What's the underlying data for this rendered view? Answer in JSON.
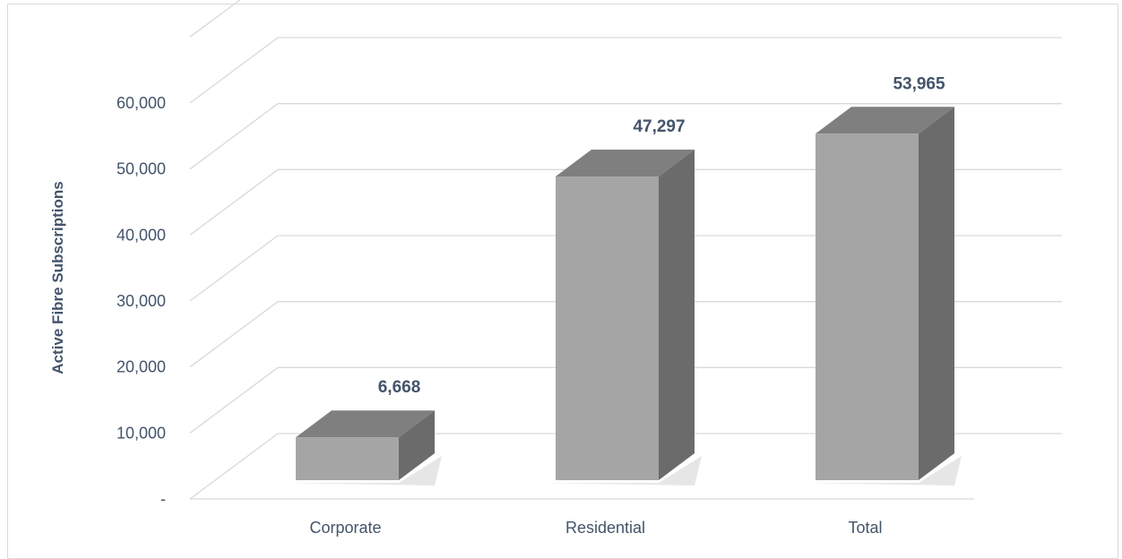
{
  "chart_data": {
    "type": "bar",
    "style": "3d-column",
    "categories": [
      "Corporate",
      "Residential",
      "Total"
    ],
    "values": [
      6668,
      47297,
      53965
    ],
    "value_labels": [
      "6,668",
      "47,297",
      "53,965"
    ],
    "title": "",
    "xlabel": "",
    "ylabel": "Active Fibre Subscriptions",
    "ylim": [
      0,
      60000
    ],
    "y_ticks": [
      0,
      10000,
      20000,
      30000,
      40000,
      50000,
      60000
    ],
    "y_tick_labels": [
      "-",
      "10,000",
      "20,000",
      "30,000",
      "40,000",
      "50,000",
      "60,000"
    ],
    "grid": true,
    "legend": "none",
    "colors": {
      "front": "#a5a5a5",
      "top": "#7f7f7f",
      "side": "#6b6b6b",
      "grid": "#d9d9d9",
      "text": "#44546a"
    }
  }
}
